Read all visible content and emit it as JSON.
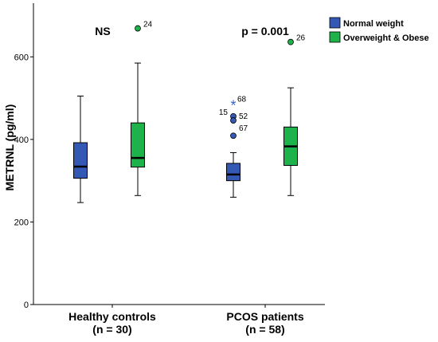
{
  "chart_data": {
    "type": "box",
    "ylabel": "METRNL (pg/ml)",
    "ylim": [
      0,
      730
    ],
    "yticks": [
      0,
      200,
      400,
      600
    ],
    "grid": false,
    "legend_position": "top-right",
    "groups": [
      {
        "label": "Healthy controls",
        "sublabel": "(n = 30)",
        "annotation": "NS"
      },
      {
        "label": "PCOS patients",
        "sublabel": "(n = 58)",
        "annotation": "p = 0.001"
      }
    ],
    "series": [
      {
        "name": "Normal weight",
        "color": "#3459b5",
        "boxes": [
          {
            "min": 247,
            "q1": 306,
            "median": 334,
            "q3": 392,
            "max": 505,
            "outliers": []
          },
          {
            "min": 260,
            "q1": 300,
            "median": 315,
            "q3": 342,
            "max": 368,
            "outliers": [
              {
                "value": 488,
                "label": "68",
                "marker": "star"
              },
              {
                "value": 456,
                "label": "15",
                "marker": "circle"
              },
              {
                "value": 446,
                "label": "52",
                "marker": "circle"
              },
              {
                "value": 409,
                "label": "67",
                "marker": "circle"
              }
            ]
          }
        ]
      },
      {
        "name": "Overweight & Obese",
        "color": "#1db34a",
        "boxes": [
          {
            "min": 264,
            "q1": 333,
            "median": 355,
            "q3": 440,
            "max": 585,
            "outliers": [
              {
                "value": 669,
                "label": "24",
                "marker": "circle"
              }
            ]
          },
          {
            "min": 264,
            "q1": 337,
            "median": 383,
            "q3": 430,
            "max": 525,
            "outliers": [
              {
                "value": 636,
                "label": "26",
                "marker": "circle"
              }
            ]
          }
        ]
      }
    ]
  }
}
